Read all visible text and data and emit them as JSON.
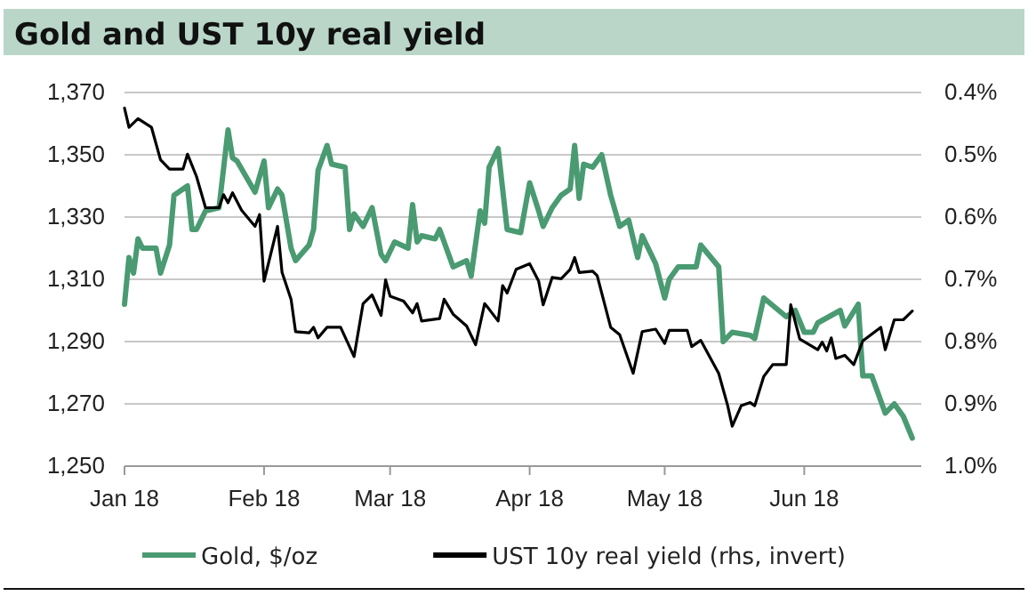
{
  "chart_data": {
    "type": "line",
    "title": "Gold and UST 10y real yield",
    "legend": "bottom",
    "grid": "y",
    "marker": "none",
    "line_style": "solid",
    "xlim": [
      "2018-01-01",
      "2018-06-27"
    ],
    "xticks": [
      {
        "value": "2018-01-01",
        "label": "Jan 18"
      },
      {
        "value": "2018-02-01",
        "label": "Feb 18"
      },
      {
        "value": "2018-03-01",
        "label": "Mar 18"
      },
      {
        "value": "2018-04-01",
        "label": "Apr 18"
      },
      {
        "value": "2018-05-01",
        "label": "May 18"
      },
      {
        "value": "2018-06-01",
        "label": "Jun 18"
      }
    ],
    "ylim": [
      1250,
      1370
    ],
    "yticks": [
      {
        "value": 1250,
        "label": "1,250"
      },
      {
        "value": 1270,
        "label": "1,270"
      },
      {
        "value": 1290,
        "label": "1,290"
      },
      {
        "value": 1310,
        "label": "1,310"
      },
      {
        "value": 1330,
        "label": "1,330"
      },
      {
        "value": 1350,
        "label": "1,350"
      },
      {
        "value": 1370,
        "label": "1,370"
      }
    ],
    "y2lim": [
      1.0,
      0.4
    ],
    "y2ticks": [
      {
        "value": 0.4,
        "label": "0.4%"
      },
      {
        "value": 0.5,
        "label": "0.5%"
      },
      {
        "value": 0.6,
        "label": "0.6%"
      },
      {
        "value": 0.7,
        "label": "0.7%"
      },
      {
        "value": 0.8,
        "label": "0.8%"
      },
      {
        "value": 0.9,
        "label": "0.9%"
      },
      {
        "value": 1.0,
        "label": "1.0%"
      }
    ],
    "series": [
      {
        "name": "Gold, $/oz",
        "color": "#4a9a72",
        "x": [
          "2018-01-01",
          "2018-01-02",
          "2018-01-03",
          "2018-01-04",
          "2018-01-05",
          "2018-01-08",
          "2018-01-09",
          "2018-01-11",
          "2018-01-12",
          "2018-01-15",
          "2018-01-16",
          "2018-01-17",
          "2018-01-19",
          "2018-01-22",
          "2018-01-24",
          "2018-01-25",
          "2018-01-26",
          "2018-01-30",
          "2018-02-01",
          "2018-02-02",
          "2018-02-04",
          "2018-02-05",
          "2018-02-07",
          "2018-02-08",
          "2018-02-11",
          "2018-02-12",
          "2018-02-13",
          "2018-02-15",
          "2018-02-16",
          "2018-02-19",
          "2018-02-20",
          "2018-02-21",
          "2018-02-23",
          "2018-02-25",
          "2018-02-27",
          "2018-02-28",
          "2018-03-02",
          "2018-03-05",
          "2018-03-06",
          "2018-03-07",
          "2018-03-08",
          "2018-03-11",
          "2018-03-12",
          "2018-03-15",
          "2018-03-18",
          "2018-03-19",
          "2018-03-21",
          "2018-03-22",
          "2018-03-23",
          "2018-03-25",
          "2018-03-27",
          "2018-03-30",
          "2018-04-01",
          "2018-04-03",
          "2018-04-04",
          "2018-04-06",
          "2018-04-08",
          "2018-04-10",
          "2018-04-11",
          "2018-04-12",
          "2018-04-13",
          "2018-04-15",
          "2018-04-17",
          "2018-04-19",
          "2018-04-21",
          "2018-04-23",
          "2018-04-25",
          "2018-04-26",
          "2018-04-29",
          "2018-05-01",
          "2018-05-02",
          "2018-05-04",
          "2018-05-08",
          "2018-05-09",
          "2018-05-13",
          "2018-05-14",
          "2018-05-16",
          "2018-05-20",
          "2018-05-21",
          "2018-05-23",
          "2018-05-28",
          "2018-05-30",
          "2018-06-01",
          "2018-06-03",
          "2018-06-04",
          "2018-06-09",
          "2018-06-10",
          "2018-06-13",
          "2018-06-14",
          "2018-06-16",
          "2018-06-19",
          "2018-06-21",
          "2018-06-23",
          "2018-06-25"
        ],
        "values": [
          1302,
          1317,
          1312,
          1323,
          1320,
          1320,
          1312,
          1321,
          1337,
          1340,
          1326,
          1326,
          1332,
          1333,
          1358,
          1349,
          1348,
          1338,
          1348,
          1333,
          1339,
          1337,
          1320,
          1316,
          1321,
          1326,
          1345,
          1353,
          1347,
          1346,
          1326,
          1331,
          1327,
          1333,
          1318,
          1316,
          1322,
          1320,
          1334,
          1322,
          1324,
          1323,
          1326,
          1314,
          1316,
          1311,
          1332,
          1328,
          1346,
          1352,
          1326,
          1325,
          1341,
          1332,
          1327,
          1333,
          1337,
          1339,
          1353,
          1336,
          1347,
          1346,
          1350,
          1337,
          1327,
          1329,
          1317,
          1324,
          1315,
          1304,
          1310,
          1314,
          1314,
          1321,
          1314,
          1290,
          1293,
          1292,
          1291,
          1304,
          1298,
          1300,
          1293,
          1293,
          1296,
          1300,
          1295,
          1302,
          1279,
          1279,
          1267,
          1270,
          1266,
          1259
        ]
      },
      {
        "name": "UST 10y real yield (rhs, invert)",
        "color": "#000000",
        "axis": "y2",
        "x": [
          "2018-01-01",
          "2018-01-02",
          "2018-01-04",
          "2018-01-07",
          "2018-01-09",
          "2018-01-11",
          "2018-01-14",
          "2018-01-15",
          "2018-01-17",
          "2018-01-19",
          "2018-01-22",
          "2018-01-23",
          "2018-01-24",
          "2018-01-25",
          "2018-01-27",
          "2018-01-30",
          "2018-01-31",
          "2018-02-01",
          "2018-02-04",
          "2018-02-05",
          "2018-02-07",
          "2018-02-08",
          "2018-02-11",
          "2018-02-12",
          "2018-02-13",
          "2018-02-15",
          "2018-02-18",
          "2018-02-21",
          "2018-02-23",
          "2018-02-25",
          "2018-02-27",
          "2018-02-28",
          "2018-03-01",
          "2018-03-04",
          "2018-03-06",
          "2018-03-07",
          "2018-03-08",
          "2018-03-12",
          "2018-03-13",
          "2018-03-15",
          "2018-03-18",
          "2018-03-20",
          "2018-03-22",
          "2018-03-23",
          "2018-03-25",
          "2018-03-26",
          "2018-03-27",
          "2018-03-29",
          "2018-04-01",
          "2018-04-03",
          "2018-04-04",
          "2018-04-06",
          "2018-04-08",
          "2018-04-10",
          "2018-04-11",
          "2018-04-12",
          "2018-04-15",
          "2018-04-16",
          "2018-04-19",
          "2018-04-21",
          "2018-04-24",
          "2018-04-26",
          "2018-04-29",
          "2018-05-01",
          "2018-05-02",
          "2018-05-06",
          "2018-05-07",
          "2018-05-09",
          "2018-05-13",
          "2018-05-15",
          "2018-05-16",
          "2018-05-18",
          "2018-05-20",
          "2018-05-21",
          "2018-05-23",
          "2018-05-25",
          "2018-05-28",
          "2018-05-29",
          "2018-05-31",
          "2018-06-04",
          "2018-06-05",
          "2018-06-06",
          "2018-06-07",
          "2018-06-08",
          "2018-06-10",
          "2018-06-12",
          "2018-06-14",
          "2018-06-18",
          "2018-06-19",
          "2018-06-21",
          "2018-06-23",
          "2018-06-25"
        ],
        "values": [
          0.425,
          0.456,
          0.442,
          0.456,
          0.508,
          0.523,
          0.523,
          0.499,
          0.535,
          0.585,
          0.585,
          0.564,
          0.577,
          0.561,
          0.589,
          0.615,
          0.596,
          0.703,
          0.615,
          0.689,
          0.732,
          0.784,
          0.786,
          0.777,
          0.794,
          0.777,
          0.777,
          0.824,
          0.739,
          0.725,
          0.758,
          0.701,
          0.727,
          0.735,
          0.754,
          0.739,
          0.767,
          0.763,
          0.732,
          0.756,
          0.775,
          0.805,
          0.739,
          0.748,
          0.767,
          0.71,
          0.722,
          0.684,
          0.675,
          0.703,
          0.741,
          0.697,
          0.699,
          0.684,
          0.665,
          0.689,
          0.687,
          0.694,
          0.777,
          0.789,
          0.851,
          0.784,
          0.78,
          0.803,
          0.782,
          0.782,
          0.808,
          0.798,
          0.851,
          0.903,
          0.936,
          0.903,
          0.898,
          0.903,
          0.856,
          0.837,
          0.837,
          0.741,
          0.796,
          0.813,
          0.801,
          0.815,
          0.794,
          0.827,
          0.822,
          0.837,
          0.799,
          0.777,
          0.813,
          0.765,
          0.765,
          0.751
        ]
      }
    ]
  }
}
